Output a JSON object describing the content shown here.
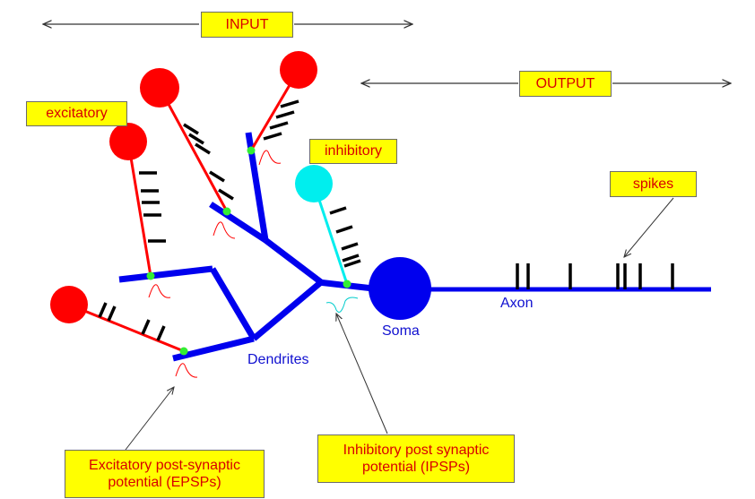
{
  "labels": {
    "input": "INPUT",
    "output": "OUTPUT",
    "excitatory": "excitatory",
    "inhibitory": "inhibitory",
    "spikes": "spikes",
    "epsp_line1": "Excitatory post-synaptic",
    "epsp_line2": "potential (EPSPs)",
    "ipsp_line1": "Inhibitory post synaptic",
    "ipsp_line2": "potential (IPSPs)",
    "dendrites": "Dendrites",
    "soma": "Soma",
    "axon": "Axon"
  },
  "colors": {
    "neuron": "#0000ee",
    "excitatory": "#ff0000",
    "inhibitory": "#00eeee",
    "synapse": "#33ee33",
    "label_box": "#ffff00",
    "label_text": "#d80000",
    "spike": "#000000",
    "arrow": "#333333"
  },
  "icons": {
    "excitatory_neuron": "red-circle",
    "inhibitory_neuron": "cyan-circle",
    "soma": "blue-circle",
    "synapse": "green-dot",
    "epsp": "red-wave",
    "ipsp": "cyan-wave"
  }
}
